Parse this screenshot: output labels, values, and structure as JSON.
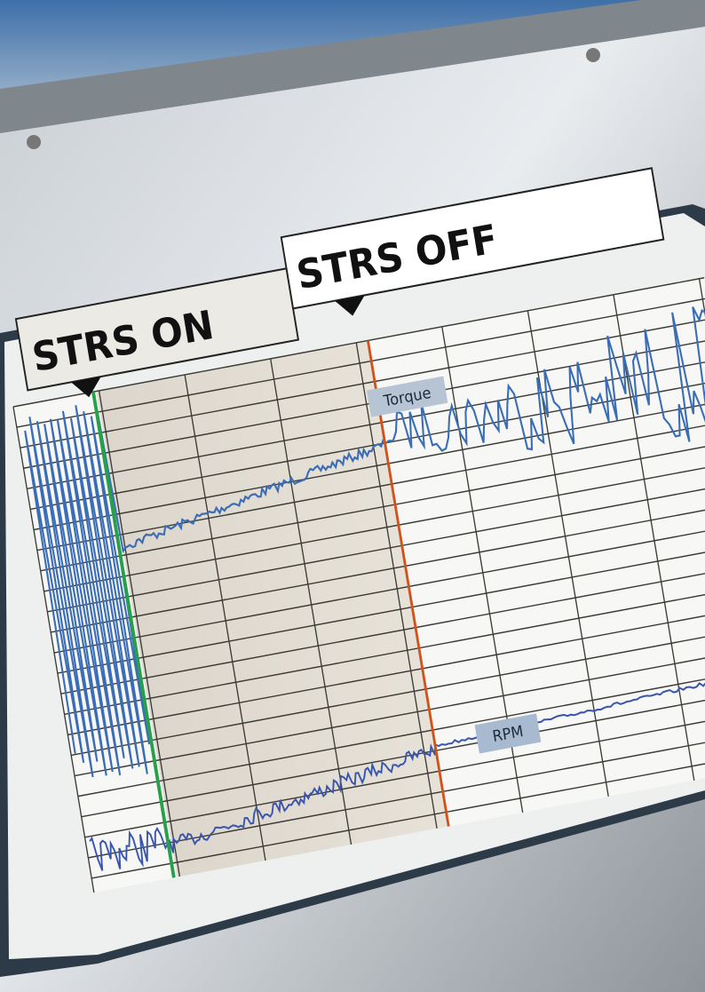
{
  "banner": {
    "start_label": "STRS ON",
    "stop_label": "STRS OFF"
  },
  "traces": {
    "upper": "Torque",
    "lower": "RPM"
  }
}
